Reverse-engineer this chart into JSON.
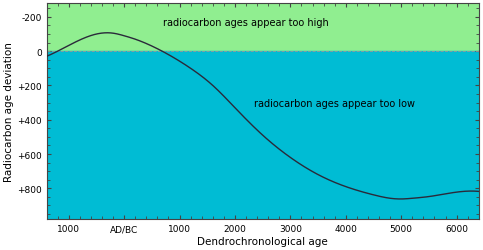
{
  "title": "",
  "xlabel": "Dendrochronological age",
  "ylabel": "Radiocarbon age deviation",
  "bg_color_top": "#90EE90",
  "bg_color_bottom": "#00BCD4",
  "curve_color": "#2a2a3a",
  "dashed_line_color": "#999999",
  "label_too_high": "radiocarbon ages appear too high",
  "label_too_low": "radiocarbon ages appear too low",
  "x_ticks": [
    -1000,
    0,
    1000,
    2000,
    3000,
    4000,
    5000,
    6000
  ],
  "x_tick_labels": [
    "1000",
    "AD/BC",
    "1000",
    "2000",
    "3000",
    "4000",
    "5000",
    "6000"
  ],
  "y_ticks": [
    -200,
    0,
    200,
    400,
    600,
    800
  ],
  "y_tick_labels": [
    "-200",
    "0",
    "+200",
    "+400",
    "+600",
    "+800"
  ],
  "xlim": [
    -1400,
    6400
  ],
  "ylim": [
    -280,
    980
  ],
  "border_color": "#444444",
  "font_size_axis_label": 7.5,
  "font_size_tick": 6.5,
  "font_size_annotation": 7.0,
  "curve_xp": [
    -1400,
    -900,
    -500,
    -200,
    0,
    200,
    500,
    800,
    1200,
    1600,
    2000,
    2500,
    3000,
    3500,
    4000,
    4500,
    4800,
    5000,
    5200,
    5500,
    5800,
    6000,
    6400
  ],
  "curve_yp": [
    30,
    -50,
    -100,
    -105,
    -90,
    -70,
    -30,
    20,
    100,
    200,
    330,
    490,
    620,
    720,
    790,
    838,
    858,
    862,
    858,
    848,
    832,
    822,
    818
  ]
}
